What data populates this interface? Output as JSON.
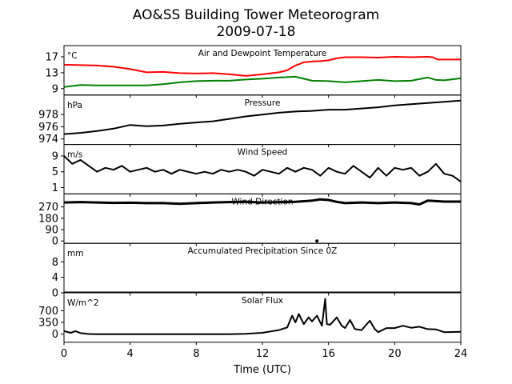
{
  "chart_data": {
    "type": "line",
    "title": "AO&SS Building Tower Meteorogram",
    "subtitle": "2009-07-18",
    "xlabel": "Time (UTC)",
    "xlim": [
      0,
      24
    ],
    "xticks": [
      0,
      4,
      8,
      12,
      16,
      20,
      24
    ],
    "panels": [
      {
        "title": "Air and Dewpoint Temperature",
        "unit": "°C",
        "ylim": [
          7.4,
          19.8
        ],
        "yticks": [
          9,
          13,
          17
        ],
        "series": [
          {
            "name": "Air Temperature",
            "color": "#ff0000",
            "x": [
              0,
              1,
              2,
              3,
              4,
              5,
              6,
              7,
              8,
              9,
              10,
              11,
              12,
              13,
              13.5,
              14,
              14.5,
              15,
              15.5,
              16,
              16.5,
              17,
              18,
              19,
              20,
              21,
              22,
              22.3,
              22.6,
              23,
              24
            ],
            "y": [
              15.0,
              14.9,
              14.8,
              14.5,
              13.9,
              13.1,
              13.2,
              12.9,
              12.8,
              12.9,
              12.6,
              12.2,
              12.6,
              13.1,
              13.6,
              14.8,
              15.6,
              15.8,
              15.9,
              16.1,
              16.6,
              16.9,
              16.9,
              16.8,
              17.0,
              16.9,
              17.0,
              16.9,
              16.3,
              16.3,
              16.3
            ]
          },
          {
            "name": "Dewpoint",
            "color": "#008000",
            "x": [
              0,
              1,
              2,
              3,
              4,
              5,
              6,
              7,
              8,
              9,
              10,
              11,
              12,
              13,
              14,
              14.5,
              15,
              16,
              17,
              18,
              19,
              20,
              21,
              21.5,
              22,
              22.5,
              23,
              24
            ],
            "y": [
              9.4,
              9.9,
              9.8,
              9.8,
              9.8,
              9.8,
              10.1,
              10.6,
              10.9,
              11.0,
              11.0,
              11.3,
              11.5,
              11.8,
              12.0,
              11.5,
              11.0,
              10.9,
              10.6,
              10.9,
              11.2,
              10.9,
              11.0,
              11.4,
              11.8,
              11.2,
              11.1,
              11.6
            ]
          }
        ]
      },
      {
        "title": "Pressure",
        "unit": "hPa",
        "ylim": [
          973.1,
          981.2
        ],
        "yticks": [
          974,
          976,
          978
        ],
        "series": [
          {
            "name": "Pressure",
            "color": "#000000",
            "x": [
              0,
              1,
              2,
              3,
              4,
              5,
              6,
              7,
              8,
              9,
              10,
              11,
              12,
              13,
              14,
              15,
              16,
              17,
              18,
              19,
              20,
              21,
              22,
              23,
              24
            ],
            "y": [
              974.8,
              975.0,
              975.3,
              975.7,
              976.3,
              976.1,
              976.2,
              976.5,
              976.7,
              976.9,
              977.3,
              977.7,
              978.0,
              978.3,
              978.5,
              978.6,
              978.8,
              978.8,
              979.0,
              979.2,
              979.5,
              979.7,
              979.9,
              980.1,
              980.3
            ]
          }
        ]
      },
      {
        "title": "Wind Speed",
        "unit": "m/s",
        "ylim": [
          -0.6,
          11.9
        ],
        "yticks": [
          1,
          5,
          9
        ],
        "series": [
          {
            "name": "Wind Speed",
            "color": "#000000",
            "x": [
              0,
              0.5,
              1,
              1.5,
              2,
              2.5,
              3,
              3.5,
              4,
              4.5,
              5,
              5.5,
              6,
              6.5,
              7,
              7.5,
              8,
              8.5,
              9,
              9.5,
              10,
              10.5,
              11,
              11.5,
              12,
              12.5,
              13,
              13.5,
              14,
              14.5,
              15,
              15.5,
              16,
              16.5,
              17,
              17.5,
              18,
              18.5,
              19,
              19.5,
              20,
              20.5,
              21,
              21.5,
              22,
              22.5,
              23,
              23.5,
              24
            ],
            "y": [
              9,
              7,
              8,
              6.5,
              5,
              6,
              5.5,
              6.5,
              5,
              5.5,
              6,
              5,
              5.5,
              4.5,
              5.5,
              5,
              4.5,
              5,
              4.5,
              5.5,
              5,
              5.5,
              5,
              4,
              5.5,
              5,
              4.5,
              6,
              5,
              6,
              5.5,
              4,
              6,
              5,
              4.5,
              6.5,
              5,
              3.5,
              6,
              4,
              6,
              5.5,
              6,
              4,
              5,
              7,
              4.5,
              4,
              2.5
            ]
          }
        ]
      },
      {
        "title": "Wind Direction",
        "unit": "",
        "ylim": [
          -19,
          373
        ],
        "yticks": [
          0,
          90,
          180,
          270
        ],
        "series": [
          {
            "name": "Wind Direction",
            "color": "#000000",
            "x": [
              0,
              1,
              2,
              3,
              4,
              5,
              6,
              7,
              8,
              9,
              10,
              11,
              12,
              13,
              14,
              15,
              15.5,
              16,
              16.5,
              17,
              18,
              19,
              20,
              21,
              21.5,
              22,
              23,
              24
            ],
            "y": [
              305,
              308,
              305,
              302,
              303,
              300,
              300,
              295,
              300,
              305,
              308,
              310,
              305,
              308,
              310,
              320,
              330,
              325,
              310,
              300,
              305,
              300,
              305,
              300,
              290,
              320,
              312,
              312
            ]
          },
          {
            "name": "Wind Direction outlier",
            "color": "#000000",
            "style": "point",
            "x": [
              15.3
            ],
            "y": [
              0
            ]
          }
        ]
      },
      {
        "title": "Accumulated Precipitation Since 0Z",
        "unit": "mm",
        "ylim": [
          0,
          12.8
        ],
        "yticks": [
          0,
          4,
          8
        ],
        "series": [
          {
            "name": "Precipitation",
            "color": "#000000",
            "x": [
              0,
              24
            ],
            "y": [
              0,
              0
            ]
          }
        ]
      },
      {
        "title": "Solar Flux",
        "unit": "W/m^2",
        "ylim": [
          -241,
          1231
        ],
        "yticks": [
          0,
          350,
          700
        ],
        "series": [
          {
            "name": "Solar Flux",
            "color": "#000000",
            "x": [
              0,
              0.4,
              0.7,
              1.0,
              1.5,
              2,
              4,
              6,
              8,
              10,
              11,
              12,
              12.5,
              13,
              13.5,
              13.8,
              14,
              14.2,
              14.5,
              14.8,
              15,
              15.3,
              15.6,
              15.8,
              15.9,
              16.1,
              16.5,
              16.8,
              17,
              17.3,
              17.6,
              18,
              18.5,
              18.8,
              19,
              19.5,
              20,
              20.5,
              21,
              21.5,
              22,
              22.5,
              23,
              24
            ],
            "y": [
              90,
              40,
              90,
              30,
              5,
              0,
              0,
              0,
              0,
              0,
              10,
              40,
              80,
              120,
              200,
              550,
              350,
              600,
              300,
              500,
              380,
              550,
              250,
              1050,
              300,
              280,
              500,
              250,
              180,
              420,
              150,
              120,
              400,
              150,
              60,
              180,
              180,
              250,
              190,
              220,
              150,
              140,
              60,
              70
            ]
          }
        ]
      }
    ]
  }
}
